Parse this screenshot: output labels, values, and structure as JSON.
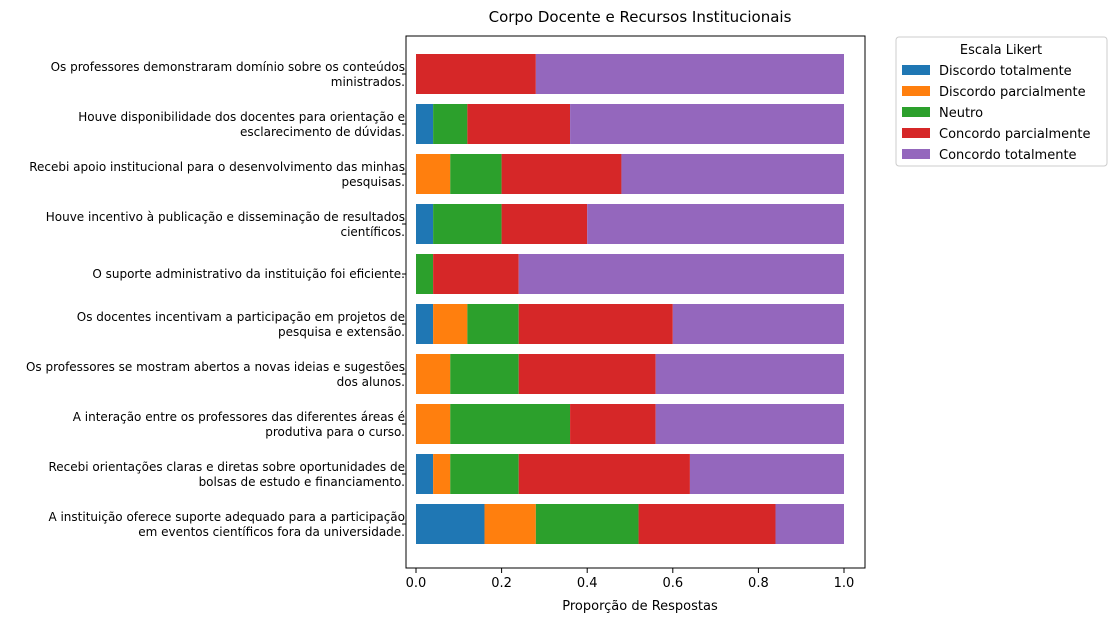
{
  "chart_data": {
    "type": "bar",
    "orientation": "horizontal",
    "stacked": true,
    "title": "Corpo Docente e Recursos Institucionais",
    "xlabel": "Proporção de Respostas",
    "ylabel": "",
    "xlim": [
      0,
      1.0
    ],
    "x_ticks": [
      "0.0",
      "0.2",
      "0.4",
      "0.6",
      "0.8",
      "1.0"
    ],
    "grid": false,
    "legend": {
      "title": "Escala Likert",
      "placement": "outside-right-top"
    },
    "categories": [
      [
        "Os professores demonstraram domínio sobre os conteúdos",
        "ministrados."
      ],
      [
        "Houve disponibilidade dos docentes para orientação e",
        "esclarecimento de dúvidas."
      ],
      [
        "Recebi apoio institucional para o desenvolvimento das minhas",
        "pesquisas."
      ],
      [
        "Houve incentivo à publicação e disseminação de resultados",
        "científicos."
      ],
      [
        "O suporte administrativo da instituição foi eficiente."
      ],
      [
        "Os docentes incentivam a participação em projetos de",
        "pesquisa e extensão."
      ],
      [
        "Os professores se mostram abertos a novas ideias e sugestões",
        "dos alunos."
      ],
      [
        "A interação entre os professores das diferentes áreas é",
        "produtiva para o curso."
      ],
      [
        "Recebi orientações claras e diretas sobre oportunidades de",
        "bolsas de estudo e financiamento."
      ],
      [
        "A instituição oferece suporte adequado para a participação",
        "em eventos científicos fora da universidade."
      ]
    ],
    "series": [
      {
        "name": "Discordo totalmente",
        "color": "#1f77b4",
        "values": [
          0,
          0.04,
          0,
          0.04,
          0,
          0.04,
          0,
          0,
          0.04,
          0.16
        ]
      },
      {
        "name": "Discordo parcialmente",
        "color": "#ff7f0e",
        "values": [
          0,
          0,
          0.08,
          0,
          0,
          0.08,
          0.08,
          0.08,
          0.04,
          0.12
        ]
      },
      {
        "name": "Neutro",
        "color": "#2ca02c",
        "values": [
          0,
          0.08,
          0.12,
          0.16,
          0.04,
          0.12,
          0.16,
          0.28,
          0.16,
          0.24
        ]
      },
      {
        "name": "Concordo parcialmente",
        "color": "#d62728",
        "values": [
          0.28,
          0.24,
          0.28,
          0.2,
          0.2,
          0.36,
          0.32,
          0.2,
          0.4,
          0.32
        ]
      },
      {
        "name": "Concordo totalmente",
        "color": "#9467bd",
        "values": [
          0.72,
          0.64,
          0.52,
          0.6,
          0.76,
          0.4,
          0.44,
          0.44,
          0.36,
          0.16
        ]
      }
    ]
  }
}
